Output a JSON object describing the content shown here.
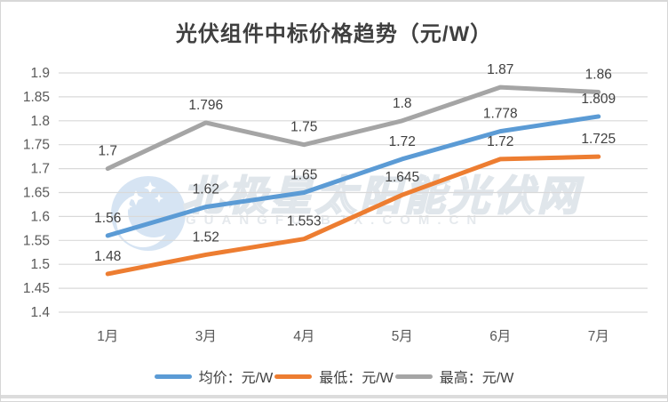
{
  "watermark": {
    "text_cn": "北极星太阳能光伏网",
    "text_en": "GUANGFU.BJX.COM.CN",
    "logo": "crescent-moon-with-stars",
    "color": "#C2CED9"
  },
  "chart_data": {
    "type": "line",
    "title": "光伏组件中标价格趋势（元/W）",
    "categories": [
      "1月",
      "3月",
      "4月",
      "5月",
      "6月",
      "7月"
    ],
    "series": [
      {
        "name": "均价：元/W",
        "color": "#5B9BD5",
        "values": [
          1.56,
          1.62,
          1.65,
          1.72,
          1.778,
          1.809
        ]
      },
      {
        "name": "最低：元/W",
        "color": "#ED7D31",
        "values": [
          1.48,
          1.52,
          1.553,
          1.645,
          1.72,
          1.725
        ]
      },
      {
        "name": "最高：元/W",
        "color": "#A5A5A5",
        "values": [
          1.7,
          1.796,
          1.75,
          1.8,
          1.87,
          1.86
        ]
      }
    ],
    "ylim": [
      1.4,
      1.9
    ],
    "yticks": [
      "1.9",
      "1.85",
      "1.8",
      "1.75",
      "1.7",
      "1.65",
      "1.6",
      "1.55",
      "1.5",
      "1.45",
      "1.4"
    ],
    "xlabel": "",
    "ylabel": "",
    "grid": true,
    "data_labels": true,
    "legend_position": "bottom"
  },
  "colors": {
    "grid": "#D9D9D9",
    "axis_text": "#595959",
    "data_label_text": "#404040",
    "title_text": "#3F3F3F",
    "border": "#D6D6D6",
    "bottom_bar": "#DCDCDC"
  }
}
